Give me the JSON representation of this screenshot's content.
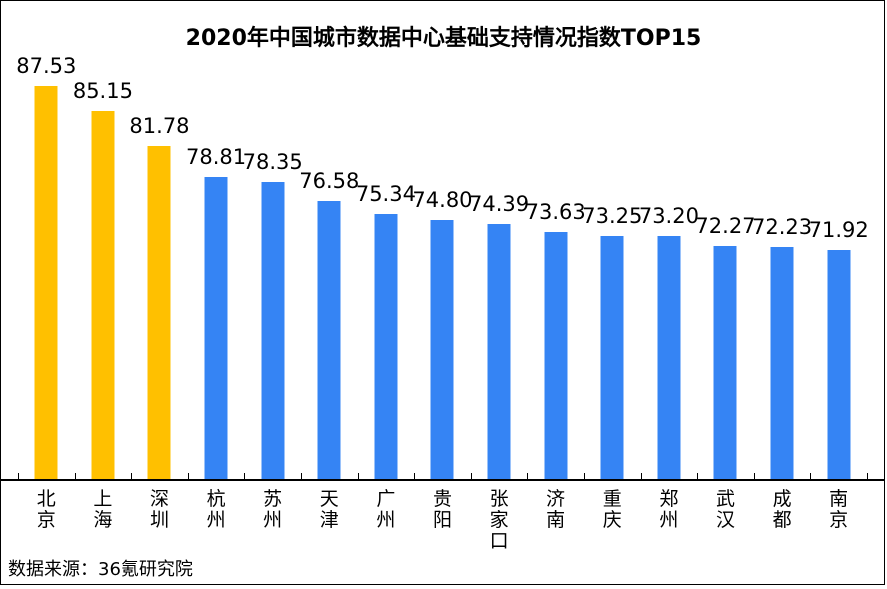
{
  "title": {
    "text": "2020年中国城市数据中心基础支持情况指数TOP15",
    "color": "#000000"
  },
  "source_note": "数据来源：36氪研究院",
  "colors": {
    "highlight_bar": "#ffc000",
    "normal_bar": "#3584f4",
    "axis": "#000000",
    "text": "#000000",
    "background": "#ffffff",
    "border": "#000000"
  },
  "chart_data": {
    "type": "bar",
    "title": "2020年中国城市数据中心基础支持情况指数TOP15",
    "categories": [
      "北京",
      "上海",
      "深圳",
      "杭州",
      "苏州",
      "天津",
      "广州",
      "贵阳",
      "张家口",
      "济南",
      "重庆",
      "郑州",
      "武汉",
      "成都",
      "南京"
    ],
    "values": [
      87.53,
      85.15,
      81.78,
      78.81,
      78.35,
      76.58,
      75.34,
      74.8,
      74.39,
      73.63,
      73.25,
      73.2,
      72.27,
      72.23,
      71.92
    ],
    "value_labels": [
      "87.53",
      "85.15",
      "81.78",
      "78.81",
      "78.35",
      "76.58",
      "75.34",
      "74.80",
      "74.39",
      "73.63",
      "73.25",
      "73.20",
      "72.27",
      "72.23",
      "71.92"
    ],
    "highlight_count": 3,
    "highlight_color": "#ffc000",
    "bar_color": "#3584f4",
    "xlabel": "",
    "ylabel": "",
    "ylim": [
      50,
      90
    ],
    "grid": false,
    "legend": null,
    "value_labels_shown": true,
    "x_labels_orientation": "vertical-stacked",
    "source": "数据来源：36氪研究院"
  }
}
